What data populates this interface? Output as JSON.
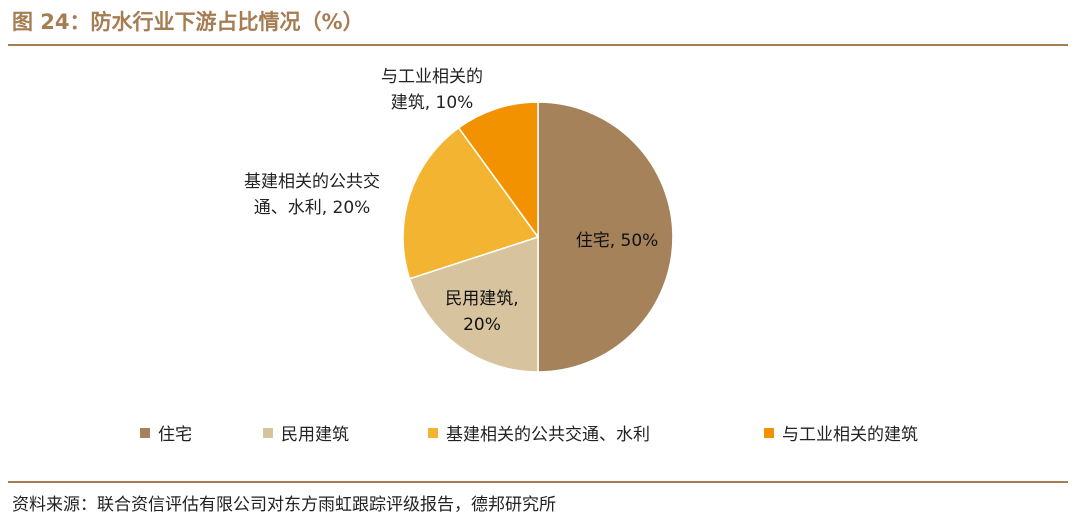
{
  "title": "图 24：防水行业下游占比情况（%）",
  "source": "资料来源：联合资信评估有限公司对东方雨虹跟踪评级报告，德邦研究所",
  "chart_data": {
    "type": "pie",
    "slices": [
      {
        "name": "住宅",
        "value": 50,
        "color": "#a5825a",
        "label_lines": [
          "住宅, 50%"
        ]
      },
      {
        "name": "民用建筑",
        "value": 20,
        "color": "#d7c39d",
        "label_lines": [
          "民用建筑,",
          "20%"
        ]
      },
      {
        "name": "基建相关的公共交通、水利",
        "value": 20,
        "color": "#f3b531",
        "label_lines": [
          "基建相关的公共交",
          "通、水利, 20%"
        ]
      },
      {
        "name": "与工业相关的建筑",
        "value": 10,
        "color": "#f39200",
        "label_lines": [
          "与工业相关的",
          "建筑, 10%"
        ]
      }
    ],
    "legend_position": "bottom"
  }
}
